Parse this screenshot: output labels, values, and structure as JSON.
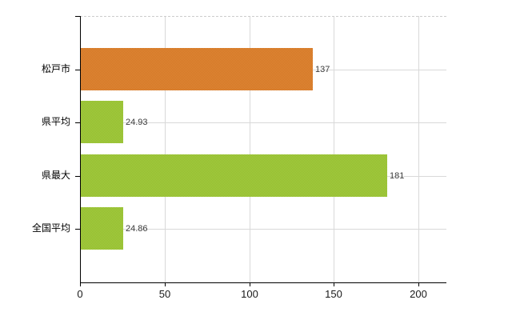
{
  "chart_data": {
    "type": "bar",
    "orientation": "horizontal",
    "title": "",
    "legend": "none",
    "categories": [
      "松戸市",
      "県平均",
      "県最大",
      "全国平均"
    ],
    "values": [
      137,
      24.93,
      181,
      24.86
    ],
    "value_labels": [
      "137",
      "24.93",
      "181",
      "24.86"
    ],
    "bar_colors": [
      "#de7c24",
      "#9bc72f",
      "#9bc72f",
      "#9bc72f"
    ],
    "x_axis": {
      "min": 0,
      "max": 216.5,
      "ticks": [
        0,
        50,
        100,
        150,
        200
      ],
      "tick_labels": [
        "0",
        "50",
        "100",
        "150",
        "200"
      ]
    },
    "grid": {
      "vertical_gridlines": true,
      "horizontal_gridlines": true,
      "gridline_color": "#d9d9d9",
      "top_border_style": "dashed",
      "top_border_color": "#cccccc"
    },
    "style": {
      "axis_color": "#000000",
      "category_label_color": "#000000",
      "value_label_color": "#3b3b3b",
      "tick_label_color": "#1a1a1a",
      "background": "#ffffff"
    }
  }
}
